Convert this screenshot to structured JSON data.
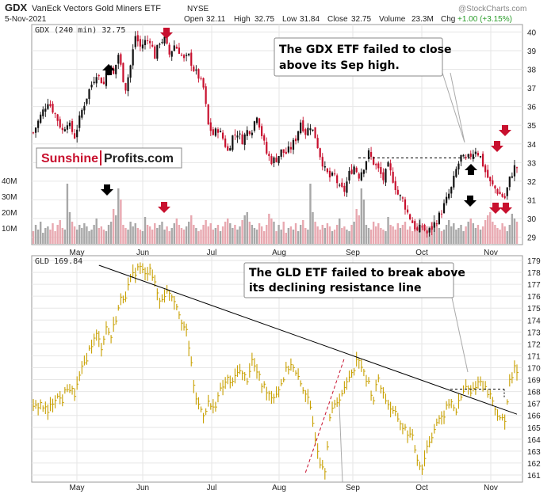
{
  "header": {
    "symbol": "GDX",
    "name": "VanEck Vectors Gold Miners ETF",
    "exchange": "NYSE",
    "date": "5-Nov-2021",
    "open_label": "Open",
    "open": "32.11",
    "high_label": "High",
    "high": "32.75",
    "low_label": "Low",
    "low": "31.84",
    "close_label": "Close",
    "close": "32.75",
    "volume_label": "Volume",
    "volume": "23.3M",
    "chg_label": "Chg",
    "chg": "+1.00 (+3.15%)",
    "watermark": "@StockCharts.com"
  },
  "logo": {
    "part1": "Sunshine",
    "part2": "Profits.com"
  },
  "colors": {
    "up": "#111111",
    "down": "#c8102e",
    "gld": "#c8a000",
    "arrow_red": "#c8102e",
    "arrow_black": "#000000",
    "vol_gray": "#a8a8a8",
    "vol_pink": "#e8a8b0"
  },
  "chart_data": [
    {
      "type": "candlestick",
      "legend": "GDX (240 min) 32.75",
      "ylim": [
        28.6,
        40.4
      ],
      "yticks": [
        29,
        30,
        31,
        32,
        33,
        34,
        35,
        36,
        37,
        38,
        39,
        40
      ],
      "xlabels": [
        "May",
        "Jun",
        "Jul",
        "Aug",
        "Sep",
        "Oct",
        "Nov"
      ],
      "volume_ticks": [
        "10M",
        "20M",
        "30M",
        "40M"
      ],
      "volume_max_m": 45,
      "path": [
        [
          0,
          34.6
        ],
        [
          3,
          35.5
        ],
        [
          6,
          36.3
        ],
        [
          9,
          35.6
        ],
        [
          12,
          34.7
        ],
        [
          14,
          35.2
        ],
        [
          17,
          34.4
        ],
        [
          20,
          35.8
        ],
        [
          23,
          36.9
        ],
        [
          26,
          37.8
        ],
        [
          29,
          37.2
        ],
        [
          31,
          38.4
        ],
        [
          33,
          37.7
        ],
        [
          35,
          38.8
        ],
        [
          37,
          37.5
        ],
        [
          38,
          37.0
        ],
        [
          40,
          38.2
        ],
        [
          42,
          39.8
        ],
        [
          44,
          39.2
        ],
        [
          46,
          39.5
        ],
        [
          48,
          39.6
        ],
        [
          50,
          38.7
        ],
        [
          52,
          39.5
        ],
        [
          54,
          39.6
        ],
        [
          56,
          38.8
        ],
        [
          58,
          39.3
        ],
        [
          60,
          39.0
        ],
        [
          62,
          38.5
        ],
        [
          64,
          38.7
        ],
        [
          66,
          38.0
        ],
        [
          68,
          37.6
        ],
        [
          70,
          37.0
        ],
        [
          72,
          35.0
        ],
        [
          74,
          34.5
        ],
        [
          76,
          34.8
        ],
        [
          78,
          34.3
        ],
        [
          80,
          33.6
        ],
        [
          82,
          34.4
        ],
        [
          84,
          34.6
        ],
        [
          86,
          34.2
        ],
        [
          88,
          34.7
        ],
        [
          90,
          34.8
        ],
        [
          92,
          35.6
        ],
        [
          94,
          34.5
        ],
        [
          96,
          33.5
        ],
        [
          98,
          33.1
        ],
        [
          100,
          33.2
        ],
        [
          102,
          33.6
        ],
        [
          104,
          33.5
        ],
        [
          106,
          33.8
        ],
        [
          108,
          34.3
        ],
        [
          110,
          35.2
        ],
        [
          112,
          34.6
        ],
        [
          114,
          35.0
        ],
        [
          116,
          34.4
        ],
        [
          118,
          33.4
        ],
        [
          120,
          32.6
        ],
        [
          122,
          32.2
        ],
        [
          124,
          32.3
        ],
        [
          126,
          31.6
        ],
        [
          128,
          31.5
        ],
        [
          130,
          32.4
        ],
        [
          132,
          32.8
        ],
        [
          134,
          32.3
        ],
        [
          136,
          32.8
        ],
        [
          138,
          33.5
        ],
        [
          140,
          33.0
        ],
        [
          142,
          32.6
        ],
        [
          144,
          32.1
        ],
        [
          146,
          32.8
        ],
        [
          148,
          32.1
        ],
        [
          150,
          31.3
        ],
        [
          152,
          31.0
        ],
        [
          154,
          30.3
        ],
        [
          156,
          29.8
        ],
        [
          158,
          29.3
        ],
        [
          160,
          29.6
        ],
        [
          162,
          29.2
        ],
        [
          164,
          29.5
        ],
        [
          166,
          29.9
        ],
        [
          168,
          30.4
        ],
        [
          170,
          31.0
        ],
        [
          172,
          31.6
        ],
        [
          174,
          32.6
        ],
        [
          176,
          33.3
        ],
        [
          178,
          33.1
        ],
        [
          180,
          33.4
        ],
        [
          182,
          33.7
        ],
        [
          184,
          33.3
        ],
        [
          186,
          32.5
        ],
        [
          188,
          31.9
        ],
        [
          190,
          31.6
        ],
        [
          192,
          31.3
        ],
        [
          194,
          31.1
        ],
        [
          196,
          32.1
        ],
        [
          198,
          32.75
        ]
      ],
      "volume_m": [
        8,
        12,
        9,
        14,
        7,
        10,
        11,
        9,
        13,
        8,
        12,
        15,
        10,
        9,
        38,
        20,
        14,
        11,
        9,
        12,
        10,
        13,
        11,
        8,
        9,
        12,
        16,
        10,
        11,
        9,
        8,
        12,
        14,
        22,
        18,
        35,
        28,
        12,
        10,
        9,
        14,
        11,
        13,
        10,
        9,
        8,
        17,
        12,
        11,
        9,
        13,
        10,
        12,
        14,
        9,
        11,
        8,
        10,
        13,
        16,
        12,
        10,
        9,
        11,
        14,
        18,
        12,
        10,
        8,
        9,
        12,
        15,
        11,
        13,
        9,
        10,
        12,
        8,
        11,
        14,
        16,
        13,
        10,
        12,
        9,
        11,
        15,
        18,
        20,
        14,
        12,
        10,
        9,
        13,
        11,
        8,
        12,
        19,
        16,
        14
      ]
    },
    {
      "type": "bar",
      "legend": "GLD 169.84",
      "ylim": [
        160.4,
        179.4
      ],
      "yticks": [
        161,
        162,
        163,
        164,
        165,
        166,
        167,
        168,
        169,
        170,
        171,
        172,
        173,
        174,
        175,
        176,
        177,
        178,
        179
      ],
      "xlabels": [
        "May",
        "Jun",
        "Jul",
        "Aug",
        "Sep",
        "Oct",
        "Nov"
      ],
      "path": [
        [
          0,
          166.5
        ],
        [
          3,
          167.0
        ],
        [
          6,
          166.2
        ],
        [
          9,
          167.6
        ],
        [
          12,
          167.3
        ],
        [
          14,
          168.4
        ],
        [
          17,
          167.8
        ],
        [
          20,
          169.8
        ],
        [
          22,
          170.9
        ],
        [
          24,
          172.0
        ],
        [
          26,
          172.7
        ],
        [
          28,
          171.8
        ],
        [
          30,
          173.4
        ],
        [
          32,
          172.6
        ],
        [
          34,
          174.2
        ],
        [
          36,
          175.7
        ],
        [
          38,
          176.2
        ],
        [
          40,
          177.3
        ],
        [
          42,
          178.1
        ],
        [
          44,
          178.5
        ],
        [
          46,
          177.7
        ],
        [
          48,
          178.6
        ],
        [
          50,
          176.9
        ],
        [
          52,
          175.6
        ],
        [
          54,
          176.2
        ],
        [
          56,
          176.4
        ],
        [
          58,
          175.8
        ],
        [
          60,
          174.7
        ],
        [
          62,
          173.4
        ],
        [
          63,
          172.9
        ],
        [
          64,
          171.5
        ],
        [
          65,
          170.6
        ],
        [
          66,
          168.2
        ],
        [
          68,
          166.8
        ],
        [
          70,
          166.2
        ],
        [
          72,
          167.0
        ],
        [
          74,
          166.5
        ],
        [
          76,
          167.6
        ],
        [
          78,
          168.4
        ],
        [
          80,
          169.0
        ],
        [
          82,
          168.6
        ],
        [
          84,
          169.9
        ],
        [
          86,
          169.4
        ],
        [
          88,
          169.1
        ],
        [
          90,
          170.6
        ],
        [
          92,
          169.6
        ],
        [
          94,
          168.6
        ],
        [
          96,
          168.2
        ],
        [
          98,
          167.6
        ],
        [
          100,
          167.9
        ],
        [
          102,
          168.7
        ],
        [
          104,
          169.7
        ],
        [
          106,
          170.4
        ],
        [
          108,
          169.4
        ],
        [
          110,
          168.6
        ],
        [
          112,
          168.0
        ],
        [
          114,
          166.4
        ],
        [
          116,
          164.3
        ],
        [
          118,
          162.2
        ],
        [
          120,
          161.6
        ],
        [
          122,
          165.8
        ],
        [
          124,
          166.8
        ],
        [
          126,
          167.6
        ],
        [
          128,
          168.1
        ],
        [
          130,
          169.3
        ],
        [
          132,
          170.1
        ],
        [
          134,
          170.9
        ],
        [
          136,
          169.4
        ],
        [
          138,
          168.6
        ],
        [
          140,
          167.4
        ],
        [
          142,
          169.2
        ],
        [
          144,
          167.8
        ],
        [
          146,
          167.0
        ],
        [
          148,
          166.2
        ],
        [
          150,
          165.8
        ],
        [
          152,
          165.0
        ],
        [
          154,
          164.6
        ],
        [
          156,
          164.0
        ],
        [
          158,
          162.4
        ],
        [
          160,
          161.6
        ],
        [
          162,
          163.4
        ],
        [
          164,
          164.4
        ],
        [
          166,
          165.4
        ],
        [
          168,
          165.6
        ],
        [
          170,
          166.6
        ],
        [
          172,
          167.1
        ],
        [
          174,
          166.4
        ],
        [
          176,
          167.5
        ],
        [
          178,
          168.4
        ],
        [
          180,
          167.8
        ],
        [
          182,
          168.6
        ],
        [
          184,
          168.9
        ],
        [
          186,
          168.2
        ],
        [
          188,
          167.7
        ],
        [
          190,
          166.7
        ],
        [
          192,
          165.5
        ],
        [
          194,
          165.8
        ],
        [
          196,
          168.7
        ],
        [
          198,
          169.84
        ]
      ],
      "resistance": {
        "x": [
          27,
          199
        ],
        "y": [
          178.6,
          166.1
        ]
      }
    }
  ],
  "annotations": {
    "gdx": {
      "line1": "The GDX ETF failed to close",
      "line2": "above its Sep high."
    },
    "gld": {
      "line1": "The GLD ETF failed to break above",
      "line2": "its declining resistance line"
    }
  }
}
